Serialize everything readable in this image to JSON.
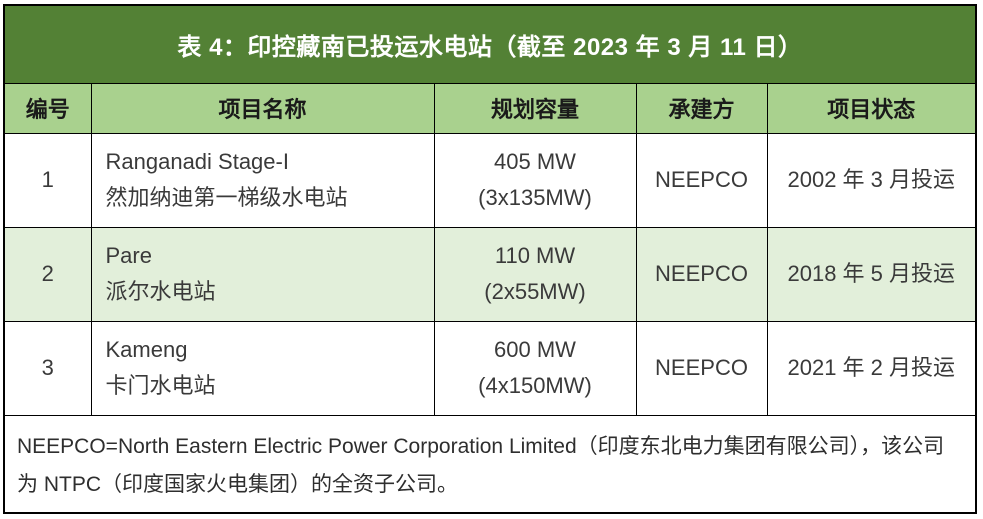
{
  "table": {
    "title": "表 4：印控藏南已投运水电站（截至 2023 年 3 月 11 日）",
    "columns": [
      {
        "label": "编号"
      },
      {
        "label": "项目名称"
      },
      {
        "label": "规划容量"
      },
      {
        "label": "承建方"
      },
      {
        "label": "项目状态"
      }
    ],
    "rows": [
      {
        "id": "1",
        "name_en": "Ranganadi Stage-I",
        "name_zh": "然加纳迪第一梯级水电站",
        "capacity": "405 MW",
        "capacity_detail": "(3x135MW)",
        "contractor": "NEEPCO",
        "status": "2002 年 3 月投运"
      },
      {
        "id": "2",
        "name_en": "Pare",
        "name_zh": "派尔水电站",
        "capacity": "110 MW",
        "capacity_detail": "(2x55MW)",
        "contractor": "NEEPCO",
        "status": "2018 年 5 月投运"
      },
      {
        "id": "3",
        "name_en": "Kameng",
        "name_zh": "卡门水电站",
        "capacity": "600 MW",
        "capacity_detail": "(4x150MW)",
        "contractor": "NEEPCO",
        "status": "2021 年 2 月投运"
      }
    ],
    "footnote": "NEEPCO=North Eastern Electric Power Corporation Limited（印度东北电力集团有限公司），该公司为 NTPC（印度国家火电集团）的全资子公司。"
  },
  "colors": {
    "title_bg": "#538135",
    "header_bg": "#a9d18e",
    "alt_row_bg": "#e2efda",
    "border": "#000000",
    "title_text": "#ffffff"
  }
}
